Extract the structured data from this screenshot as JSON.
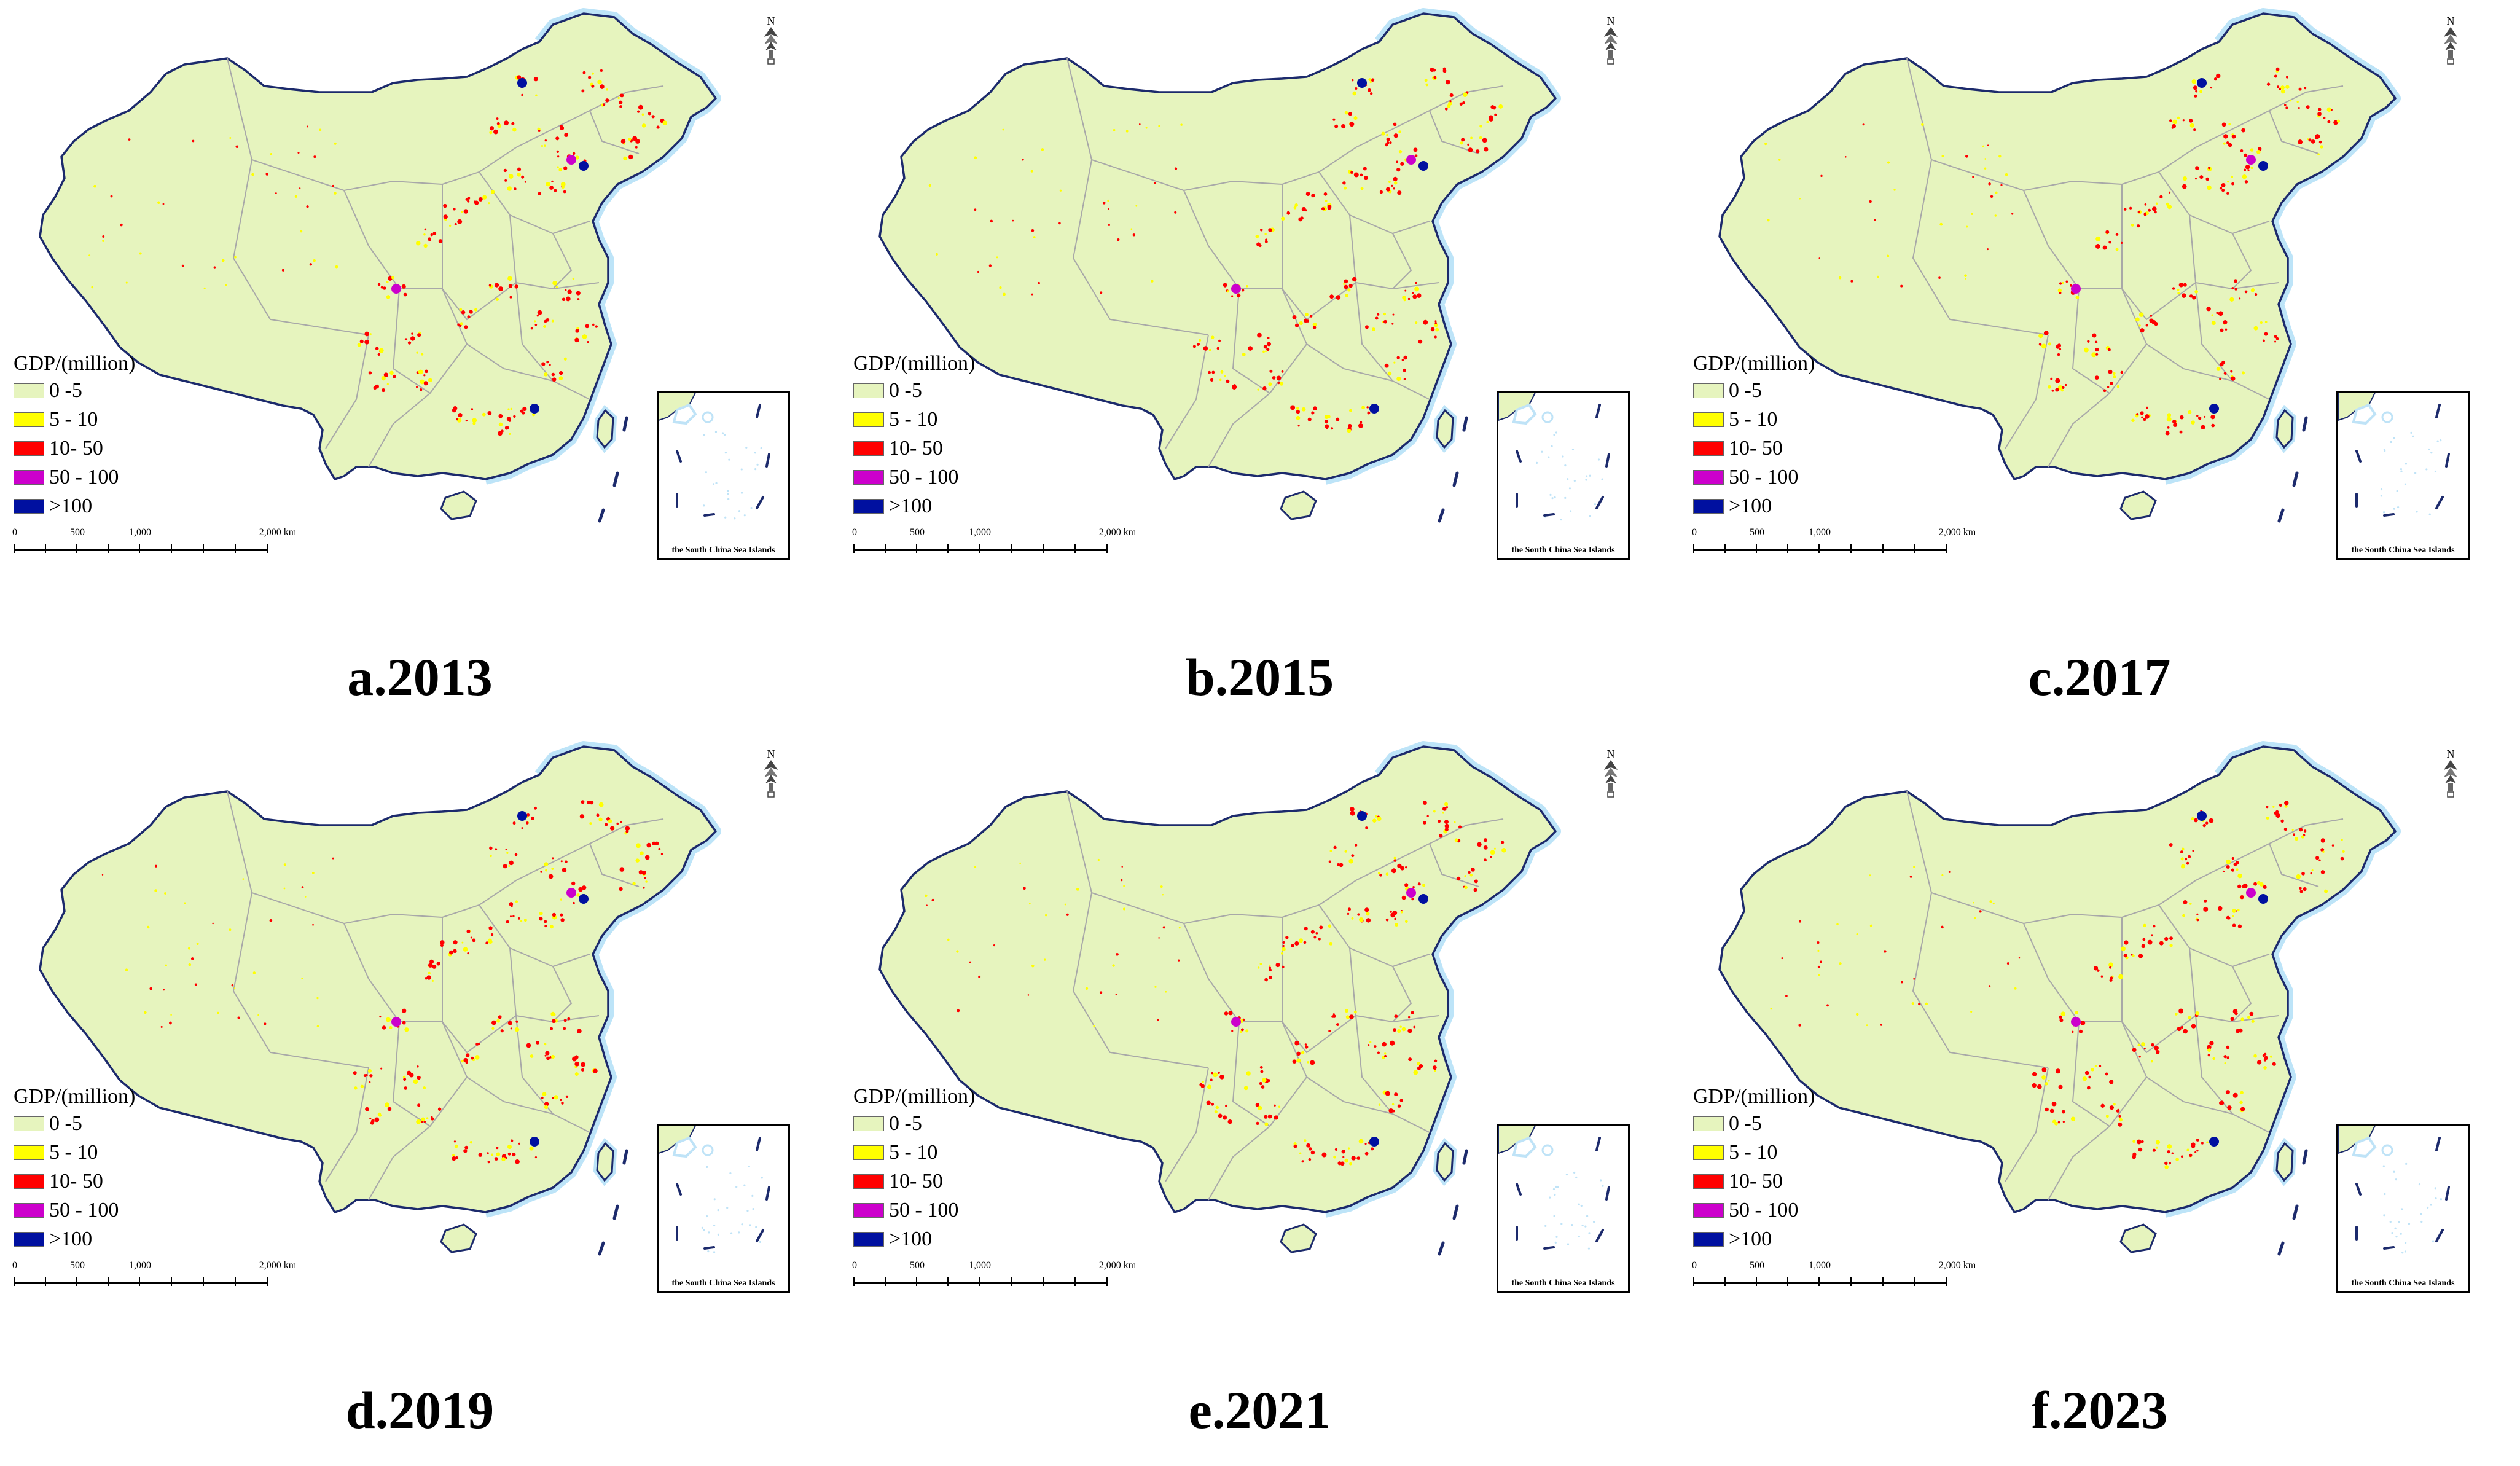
{
  "legend": {
    "title": "GDP/(million)",
    "classes": [
      {
        "label": "0 -5",
        "color": "#e6f4be"
      },
      {
        "label": "5 - 10",
        "color": "#ffff00"
      },
      {
        "label": "10- 50",
        "color": "#ff0000"
      },
      {
        "label": "50 - 100",
        "color": "#cc00cc"
      },
      {
        "label": ">100",
        "color": "#0010a0"
      }
    ]
  },
  "scale_bar": {
    "labels": [
      "0",
      "500",
      "1,000",
      "2,000 km"
    ]
  },
  "north_arrow_label": "N",
  "inset_label": "the South China Sea Islands",
  "colors": {
    "land": "#e6f4be",
    "border": "#1c2a6c",
    "province_line": "#a8a8a8",
    "sea": "#bfe3f7",
    "coast_glow": "#bde4f8"
  },
  "panels": [
    {
      "caption": "a.2013",
      "icon": "north-arrow-icon"
    },
    {
      "caption": "b.2015",
      "icon": "north-arrow-icon"
    },
    {
      "caption": "c.2017",
      "icon": "north-arrow-icon"
    },
    {
      "caption": "d.2019",
      "icon": "north-arrow-icon"
    },
    {
      "caption": "e.2021",
      "icon": "north-arrow-icon"
    },
    {
      "caption": "f.2023",
      "icon": "north-arrow-icon"
    }
  ]
}
